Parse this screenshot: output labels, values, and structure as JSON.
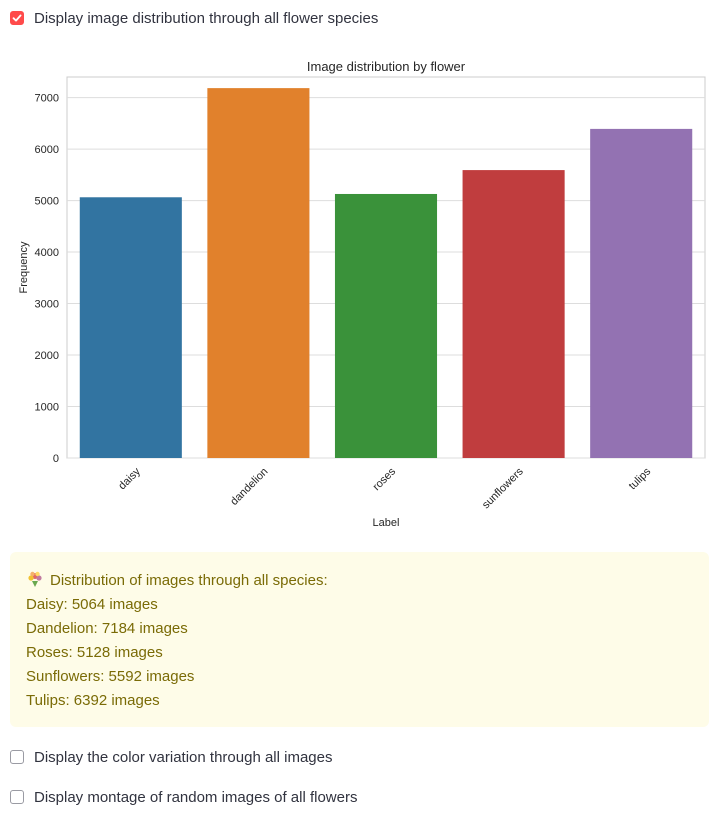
{
  "checkboxes": [
    {
      "label": "Display image distribution through all flower species",
      "checked": true
    },
    {
      "label": "Display the color variation through all images",
      "checked": false
    },
    {
      "label": "Display montage of random images of all flowers",
      "checked": false
    }
  ],
  "chart_data": {
    "type": "bar",
    "title": "Image distribution by flower",
    "xlabel": "Label",
    "ylabel": "Frequency",
    "categories": [
      "daisy",
      "dandelion",
      "roses",
      "sunflowers",
      "tulips"
    ],
    "values": [
      5064,
      7184,
      5128,
      5592,
      6392
    ],
    "colors": [
      "#3274a1",
      "#e1812c",
      "#3a923a",
      "#c03d3e",
      "#9372b2"
    ],
    "ylim": [
      0,
      7400
    ],
    "yticks": [
      0,
      1000,
      2000,
      3000,
      4000,
      5000,
      6000,
      7000
    ],
    "grid": true
  },
  "info": {
    "icon": "bouquet-icon",
    "heading": "Distribution of images through all species:",
    "lines": [
      "Daisy: 5064 images",
      "Dandelion: 7184 images",
      "Roses: 5128 images",
      "Sunflowers: 5592 images",
      "Tulips: 6392 images"
    ]
  },
  "colors": {
    "accent": "#ff4b4b",
    "info_bg": "#fefce8",
    "info_text": "#7a6b06"
  }
}
